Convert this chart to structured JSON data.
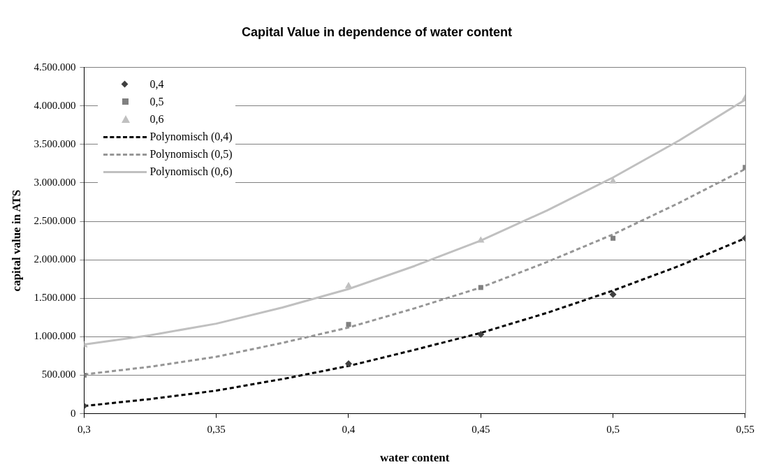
{
  "chart_data": {
    "type": "scatter",
    "title": "Capital Value in dependence of water content",
    "xlabel": "water content",
    "ylabel": "capital value in ATS",
    "xlim": [
      0.3,
      0.55
    ],
    "xticks": [
      {
        "value": 0.3,
        "label": "0,3"
      },
      {
        "value": 0.35,
        "label": "0,35"
      },
      {
        "value": 0.4,
        "label": "0,4"
      },
      {
        "value": 0.45,
        "label": "0,45"
      },
      {
        "value": 0.5,
        "label": "0,5"
      },
      {
        "value": 0.55,
        "label": "0,55"
      }
    ],
    "ylim": [
      0,
      4500000
    ],
    "yticks": [
      {
        "value": 0,
        "label": "0"
      },
      {
        "value": 500000,
        "label": "500.000"
      },
      {
        "value": 1000000,
        "label": "1.000.000"
      },
      {
        "value": 1500000,
        "label": "1.500.000"
      },
      {
        "value": 2000000,
        "label": "2.000.000"
      },
      {
        "value": 2500000,
        "label": "2.500.000"
      },
      {
        "value": 3000000,
        "label": "3.000.000"
      },
      {
        "value": 3500000,
        "label": "3.500.000"
      },
      {
        "value": 4000000,
        "label": "4.000.000"
      },
      {
        "value": 4500000,
        "label": "4.500.000"
      }
    ],
    "grid": "y",
    "legend": "top left",
    "series": [
      {
        "name": "0,4",
        "marker": "diamond",
        "color": "#404040",
        "x": [
          0.3,
          0.4,
          0.45,
          0.5,
          0.55
        ],
        "values": [
          100000,
          650000,
          1030000,
          1550000,
          2280000
        ]
      },
      {
        "name": "0,5",
        "marker": "square",
        "color": "#808080",
        "x": [
          0.3,
          0.4,
          0.45,
          0.5,
          0.55
        ],
        "values": [
          500000,
          1160000,
          1640000,
          2280000,
          3200000
        ]
      },
      {
        "name": "0,6",
        "marker": "triangle",
        "color": "#c0c0c0",
        "x": [
          0.3,
          0.4,
          0.45,
          0.5,
          0.55
        ],
        "values": [
          890000,
          1660000,
          2250000,
          3020000,
          4100000
        ]
      },
      {
        "name": "Polynomisch (0,4)",
        "type": "line",
        "marker": "none",
        "line_style": "dashed",
        "color": "#000000",
        "x": [
          0.3,
          0.325,
          0.35,
          0.375,
          0.4,
          0.425,
          0.45,
          0.475,
          0.5,
          0.525,
          0.55
        ],
        "values": [
          100000,
          190000,
          300000,
          450000,
          620000,
          830000,
          1050000,
          1310000,
          1600000,
          1920000,
          2280000
        ]
      },
      {
        "name": "Polynomisch (0,5)",
        "type": "line",
        "marker": "none",
        "line_style": "dashed",
        "color": "#969696",
        "x": [
          0.3,
          0.325,
          0.35,
          0.375,
          0.4,
          0.425,
          0.45,
          0.475,
          0.5,
          0.525,
          0.55
        ],
        "values": [
          510000,
          610000,
          740000,
          920000,
          1120000,
          1370000,
          1640000,
          1970000,
          2330000,
          2740000,
          3180000
        ]
      },
      {
        "name": "Polynomisch (0,6)",
        "type": "line",
        "marker": "none",
        "line_style": "solid",
        "color": "#c0c0c0",
        "x": [
          0.3,
          0.325,
          0.35,
          0.375,
          0.4,
          0.425,
          0.45,
          0.475,
          0.5,
          0.525,
          0.55
        ],
        "values": [
          900000,
          1020000,
          1170000,
          1380000,
          1620000,
          1920000,
          2250000,
          2640000,
          3070000,
          3550000,
          4080000
        ]
      }
    ]
  }
}
